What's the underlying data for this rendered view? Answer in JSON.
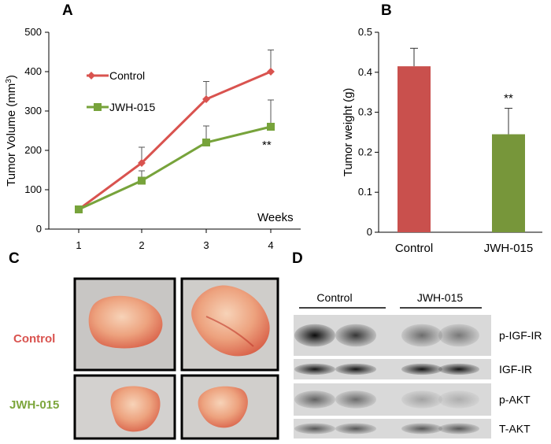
{
  "panels": {
    "a": "A",
    "b": "B",
    "c": "C",
    "d": "D"
  },
  "chart_data": [
    {
      "type": "line",
      "panel": "A",
      "ylabel": "Tumor Volume (mm3)",
      "ylabel_main": "Tumor Volume (mm",
      "ylabel_sup": "3",
      "ylabel_close": ")",
      "xlabel": "Weeks",
      "x": [
        1,
        2,
        3,
        4
      ],
      "xticks": [
        "1",
        "2",
        "3",
        "4"
      ],
      "yticks": [
        "0",
        "100",
        "200",
        "300",
        "400",
        "500"
      ],
      "ylim": [
        0,
        500
      ],
      "series": [
        {
          "name": "Control",
          "color": "#d9534f",
          "marker": "diamond",
          "values": [
            50,
            168,
            330,
            400
          ],
          "error": [
            0,
            40,
            45,
            55
          ]
        },
        {
          "name": "JWH-015",
          "color": "#77a33b",
          "marker": "square",
          "values": [
            50,
            123,
            220,
            260
          ],
          "error": [
            0,
            25,
            42,
            68
          ]
        }
      ],
      "annotation": "**",
      "grid": false,
      "legend": "upper-left"
    },
    {
      "type": "bar",
      "panel": "B",
      "ylabel": "Tumor weight (g)",
      "categories": [
        "Control",
        "JWH-015"
      ],
      "values": [
        0.415,
        0.245
      ],
      "error": [
        0.045,
        0.065
      ],
      "colors": [
        "#c9504d",
        "#77963a"
      ],
      "yticks": [
        "0",
        "0.1",
        "0.2",
        "0.3",
        "0.4",
        "0.5"
      ],
      "ylim": [
        0,
        0.5
      ],
      "annotation": "**",
      "grid": false
    }
  ],
  "photos": {
    "row_labels": [
      "Control",
      "JWH-015"
    ],
    "row_colors": [
      "#d9534f",
      "#7da63c"
    ]
  },
  "blot": {
    "groups": [
      "Control",
      "JWH-015"
    ],
    "rows": [
      "p-IGF-IR",
      "IGF-IR",
      "p-AKT",
      "T-AKT"
    ],
    "intensity": [
      [
        0.95,
        0.75,
        0.5,
        0.45
      ],
      [
        0.9,
        0.9,
        0.9,
        0.9
      ],
      [
        0.55,
        0.5,
        0.25,
        0.2
      ],
      [
        0.6,
        0.6,
        0.6,
        0.6
      ]
    ]
  }
}
